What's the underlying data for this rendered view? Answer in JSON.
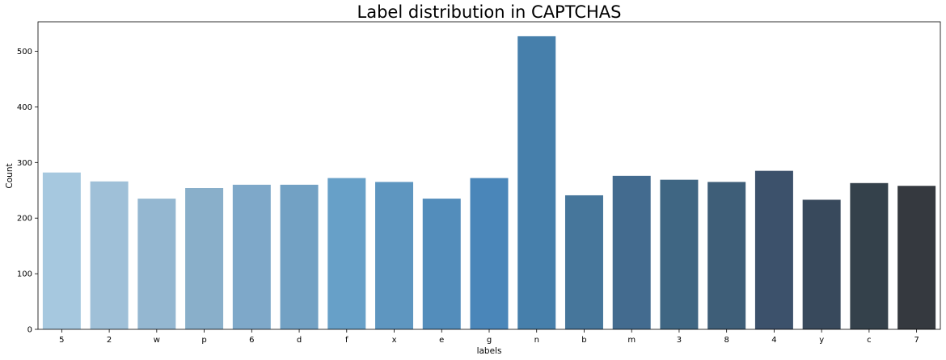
{
  "chart_data": {
    "type": "bar",
    "title": "Label distribution in CAPTCHAS",
    "xlabel": "labels",
    "ylabel": "Count",
    "categories": [
      "5",
      "2",
      "w",
      "p",
      "6",
      "d",
      "f",
      "x",
      "e",
      "g",
      "n",
      "b",
      "m",
      "3",
      "8",
      "4",
      "y",
      "c",
      "7"
    ],
    "values": [
      282,
      266,
      235,
      254,
      260,
      260,
      272,
      265,
      235,
      272,
      527,
      241,
      276,
      269,
      265,
      285,
      233,
      263,
      258
    ],
    "ylim": [
      0,
      553
    ],
    "yticks": [
      0,
      100,
      200,
      300,
      400,
      500
    ],
    "grid": false,
    "colors": [
      "#a6c8df",
      "#9fc0d8",
      "#94b7d1",
      "#89afca",
      "#7ea8c9",
      "#72a1c4",
      "#67a0c8",
      "#5e96c0",
      "#538dbb",
      "#4a86b9",
      "#467fab",
      "#46769b",
      "#436b8f",
      "#3f6683",
      "#3e5e78",
      "#3c516b",
      "#38495c",
      "#34414b",
      "#35393f"
    ]
  }
}
